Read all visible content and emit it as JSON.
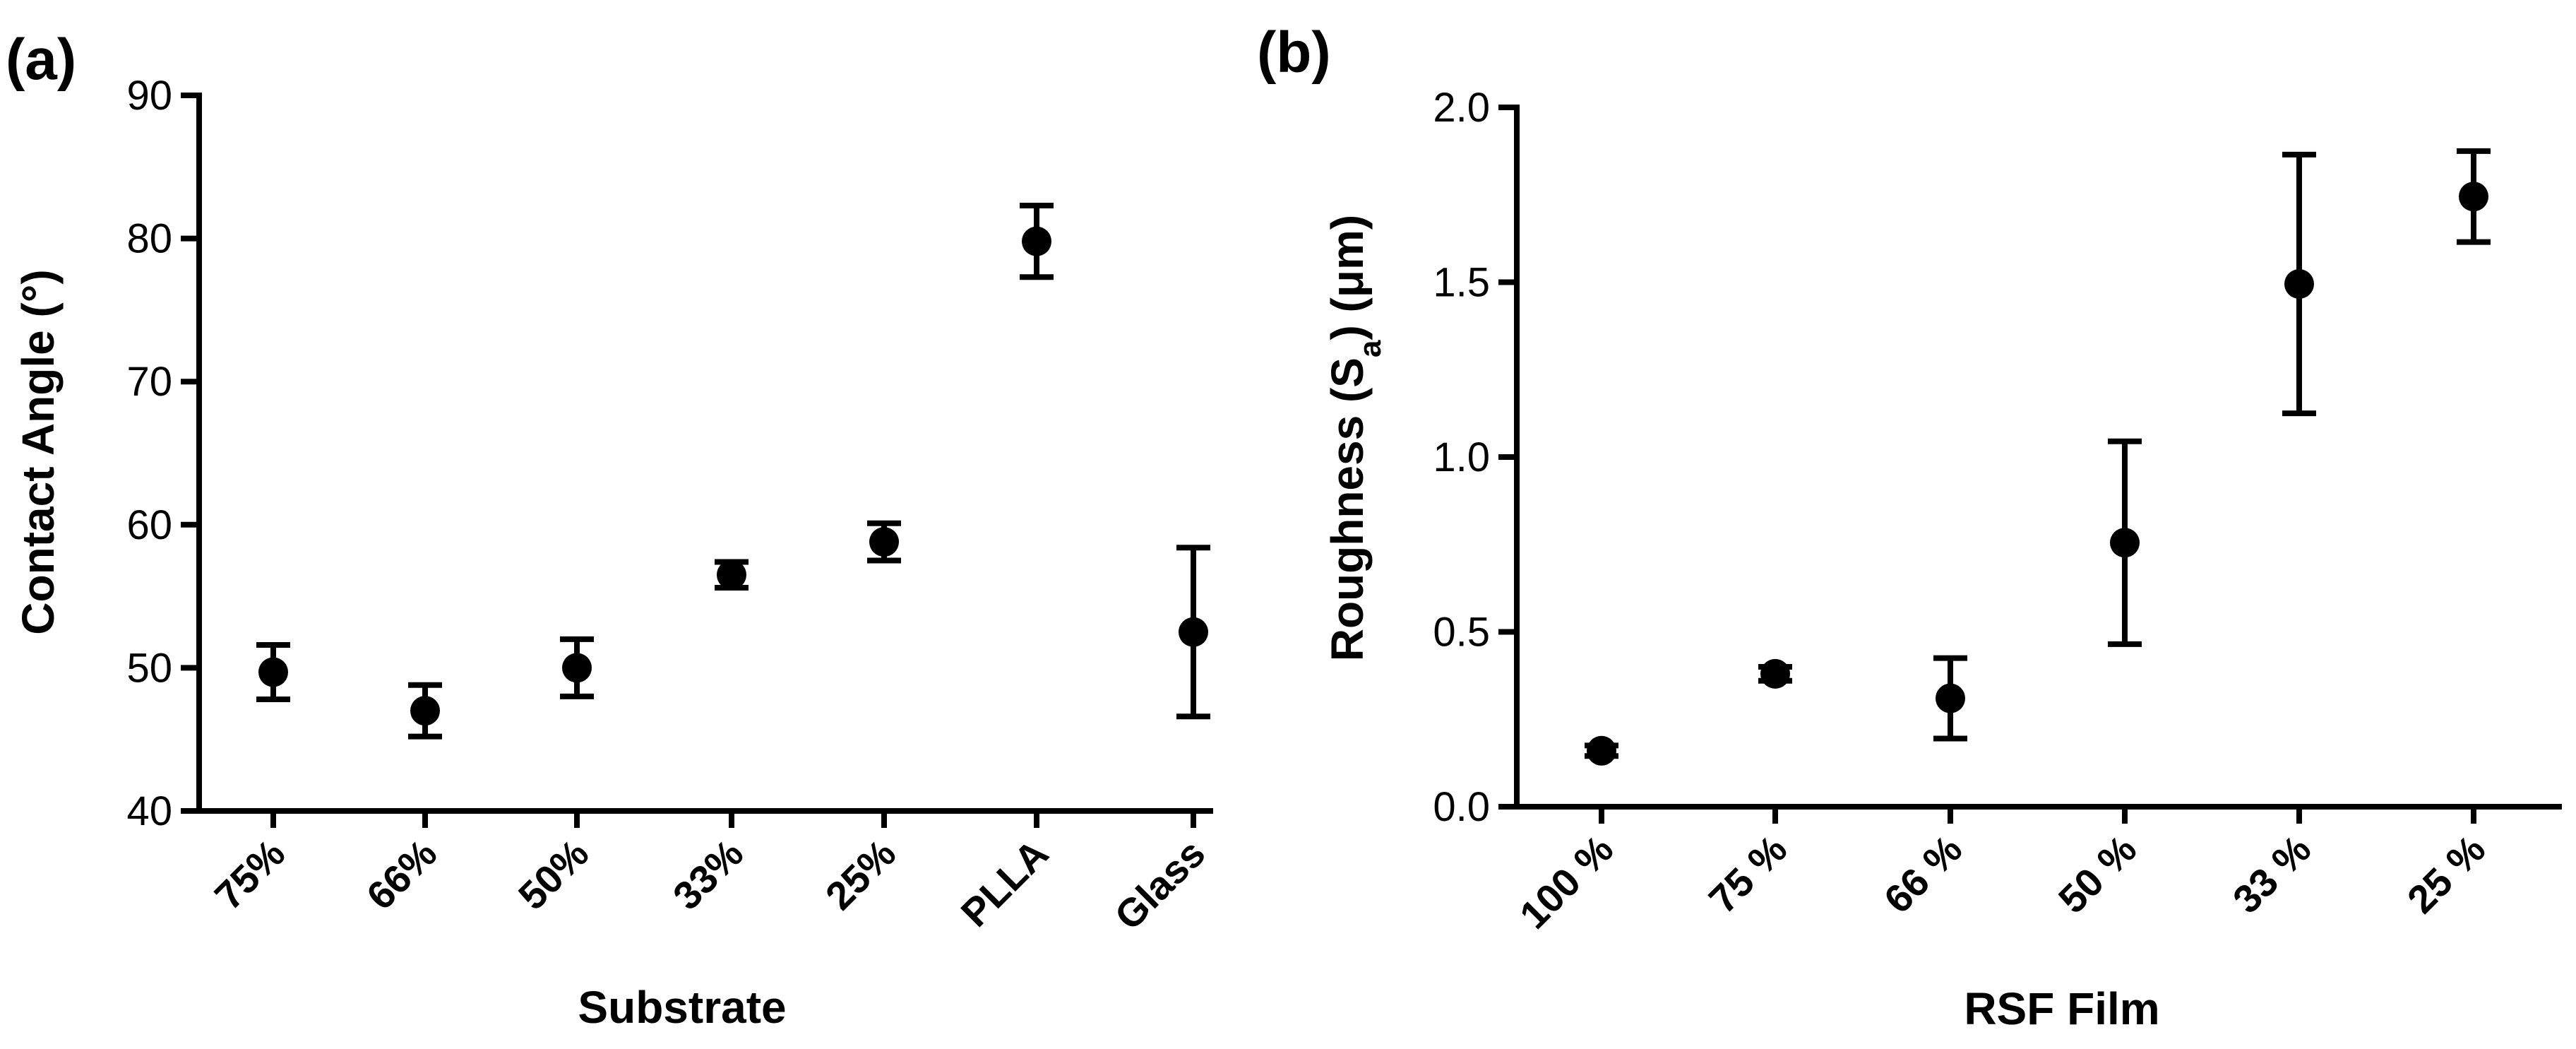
{
  "chart_data": [
    {
      "type": "scatter",
      "panel_label": "(a)",
      "xlabel": "Substrate",
      "ylabel": "Contact Angle (°)",
      "ylim": [
        40,
        90
      ],
      "yticks": [
        "40",
        "50",
        "60",
        "70",
        "80",
        "90"
      ],
      "grid": false,
      "categories": [
        "75%",
        "66%",
        "50%",
        "33%",
        "25%",
        "PLLA",
        "Glass"
      ],
      "values": [
        49.7,
        47.0,
        50.0,
        56.5,
        58.8,
        79.8,
        52.5
      ],
      "error": [
        1.9,
        1.8,
        2.0,
        0.9,
        1.3,
        2.5,
        5.9
      ]
    },
    {
      "type": "scatter",
      "panel_label": "(b)",
      "xlabel": "RSF Film",
      "ylabel_main": "Roughness (S",
      "ylabel_sub": "a",
      "ylabel_end": ") (μm)",
      "ylim": [
        0.0,
        2.0
      ],
      "yticks": [
        "0.0",
        "0.5",
        "1.0",
        "1.5",
        "2.0"
      ],
      "grid": false,
      "categories": [
        "100 %",
        "75 %",
        "66 %",
        "50 %",
        "33 %",
        "25 %"
      ],
      "values": [
        0.16,
        0.38,
        0.31,
        0.755,
        1.495,
        1.745
      ],
      "error": [
        0.015,
        0.02,
        0.115,
        0.29,
        0.37,
        0.13
      ]
    }
  ]
}
